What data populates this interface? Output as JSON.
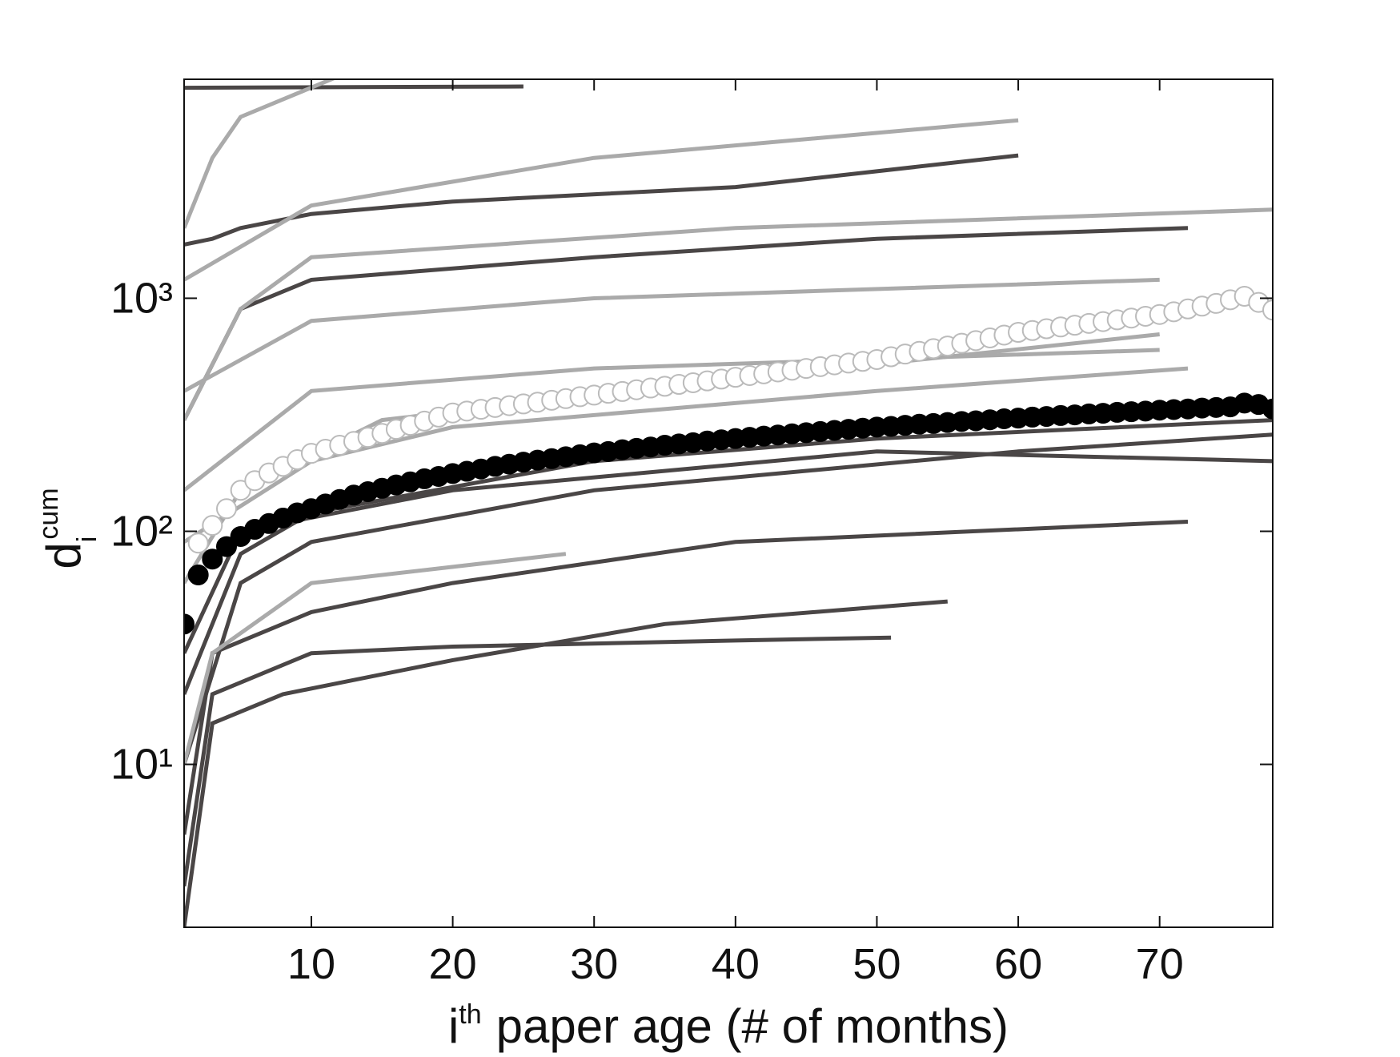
{
  "chart_data": {
    "type": "line",
    "xlabel": {
      "base": "i",
      "sup": "th",
      "text": "paper age (# of months)"
    },
    "ylabel": {
      "base": "d",
      "sub": "i",
      "sup": "cum"
    },
    "xlim": [
      1,
      78
    ],
    "ylim": [
      2,
      8700
    ],
    "yscale": "log",
    "xticks": [
      10,
      20,
      30,
      40,
      50,
      60,
      70
    ],
    "yticks": [
      {
        "value": 10,
        "label": "10¹"
      },
      {
        "value": 100,
        "label": "10²"
      },
      {
        "value": 1000,
        "label": "10³"
      }
    ],
    "x": [
      1,
      2,
      3,
      4,
      5,
      6,
      7,
      8,
      9,
      10,
      11,
      12,
      13,
      14,
      15,
      16,
      17,
      18,
      19,
      20,
      21,
      22,
      23,
      24,
      25,
      26,
      27,
      28,
      29,
      30,
      31,
      32,
      33,
      34,
      35,
      36,
      37,
      38,
      39,
      40,
      41,
      42,
      43,
      44,
      45,
      46,
      47,
      48,
      49,
      50,
      51,
      52,
      53,
      54,
      55,
      56,
      57,
      58,
      59,
      60,
      61,
      62,
      63,
      64,
      65,
      66,
      67,
      68,
      69,
      70,
      71,
      72,
      73,
      74,
      75,
      76,
      77,
      78
    ],
    "lines": [
      {
        "color": "#4a4646",
        "x": [
          1,
          25
        ],
        "values": [
          8000,
          8100
        ]
      },
      {
        "color": "#4a4646",
        "x": [
          1,
          3,
          5,
          10,
          20,
          40,
          60
        ],
        "values": [
          1700,
          1800,
          2000,
          2300,
          2600,
          3000,
          4100
        ]
      },
      {
        "color": "#4a4646",
        "x": [
          1,
          5,
          10,
          30,
          50,
          72
        ],
        "values": [
          300,
          900,
          1200,
          1500,
          1800,
          2000
        ]
      },
      {
        "color": "#4a4646",
        "x": [
          1,
          5,
          10,
          30,
          50,
          78
        ],
        "values": [
          20,
          80,
          120,
          200,
          250,
          300
        ]
      },
      {
        "color": "#4a4646",
        "x": [
          1,
          3,
          10,
          20,
          40,
          72
        ],
        "values": [
          5,
          30,
          45,
          60,
          90,
          110
        ]
      },
      {
        "color": "#4a4646",
        "x": [
          1,
          3,
          10,
          20,
          40,
          51
        ],
        "values": [
          3,
          20,
          30,
          32,
          34,
          35
        ]
      },
      {
        "color": "#4a4646",
        "x": [
          1,
          5,
          10,
          30,
          60,
          78
        ],
        "values": [
          10,
          60,
          90,
          150,
          220,
          260
        ]
      },
      {
        "color": "#4a4646",
        "x": [
          1,
          5,
          20,
          50,
          78
        ],
        "values": [
          30,
          100,
          150,
          220,
          200
        ]
      },
      {
        "color": "#4a4646",
        "x": [
          1,
          3,
          8,
          20,
          35,
          55
        ],
        "values": [
          2,
          15,
          20,
          28,
          40,
          50
        ]
      },
      {
        "color": "#aaaaaa",
        "x": [
          1,
          3,
          5,
          12
        ],
        "values": [
          2000,
          4000,
          6000,
          9000
        ]
      },
      {
        "color": "#aaaaaa",
        "x": [
          1,
          10,
          30,
          60
        ],
        "values": [
          1200,
          2500,
          4000,
          5800
        ]
      },
      {
        "color": "#aaaaaa",
        "x": [
          1,
          10,
          30,
          70
        ],
        "values": [
          400,
          800,
          1000,
          1200
        ]
      },
      {
        "color": "#aaaaaa",
        "x": [
          1,
          10,
          30,
          70
        ],
        "values": [
          150,
          400,
          500,
          600
        ]
      },
      {
        "color": "#aaaaaa",
        "x": [
          1,
          5,
          15,
          40,
          70
        ],
        "values": [
          60,
          150,
          300,
          450,
          700
        ]
      },
      {
        "color": "#aaaaaa",
        "x": [
          1,
          3,
          10,
          28
        ],
        "values": [
          10,
          30,
          60,
          80
        ]
      },
      {
        "color": "#aaaaaa",
        "x": [
          1,
          5,
          10,
          40,
          78
        ],
        "values": [
          300,
          900,
          1500,
          2000,
          2400
        ]
      },
      {
        "color": "#aaaaaa",
        "x": [
          1,
          10,
          20,
          50,
          72
        ],
        "values": [
          90,
          200,
          280,
          400,
          500
        ]
      }
    ],
    "series": [
      {
        "color": "#ffffff",
        "edge": "#bbbbbb",
        "values": [
          null,
          89,
          106,
          125,
          150,
          165,
          178,
          190,
          203,
          216,
          225,
          234,
          243,
          253,
          263,
          274,
          285,
          297,
          309,
          322,
          328,
          334,
          340,
          346,
          352,
          358,
          365,
          371,
          378,
          384,
          391,
          398,
          405,
          412,
          419,
          427,
          434,
          442,
          450,
          458,
          466,
          474,
          483,
          491,
          500,
          509,
          518,
          527,
          536,
          546,
          561,
          576,
          592,
          608,
          624,
          641,
          658,
          676,
          695,
          714,
          727,
          740,
          753,
          766,
          780,
          794,
          808,
          822,
          837,
          852,
          875,
          900,
          925,
          950,
          985,
          1020,
          960,
          890
        ]
      },
      {
        "color": "#000000",
        "edge": "#000000",
        "values": [
          40,
          65,
          76,
          86,
          95,
          102,
          108,
          114,
          120,
          125,
          131,
          137,
          143,
          148,
          153,
          158,
          163,
          168,
          172,
          177,
          181,
          185,
          190,
          194,
          198,
          202,
          205,
          209,
          213,
          217,
          220,
          224,
          227,
          230,
          234,
          237,
          240,
          244,
          247,
          250,
          253,
          256,
          259,
          262,
          265,
          268,
          271,
          274,
          277,
          280,
          282,
          285,
          288,
          290,
          293,
          296,
          298,
          301,
          304,
          306,
          309,
          311,
          314,
          316,
          319,
          321,
          324,
          326,
          328,
          331,
          333,
          335,
          338,
          340,
          342,
          355,
          350,
          335
        ]
      }
    ]
  }
}
